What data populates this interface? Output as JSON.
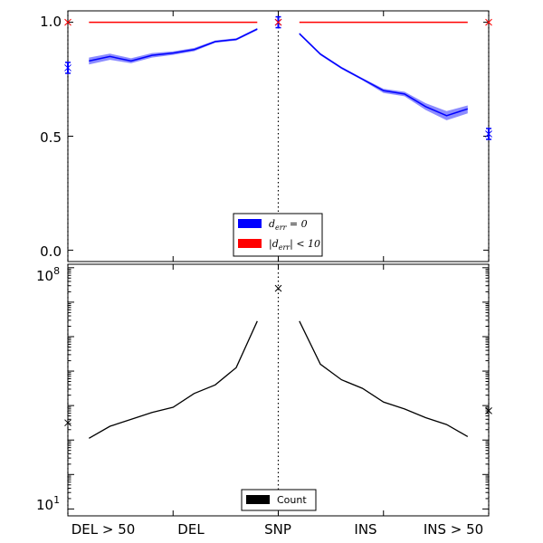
{
  "chart_data": [
    {
      "type": "line",
      "panel": "top",
      "x_categories": [
        "DEL > 50",
        "DEL",
        "SNP",
        "INS",
        "INS > 50"
      ],
      "yticks": [
        "0.0",
        "0.5",
        "1.0"
      ],
      "ylim": [
        -0.05,
        1.05
      ],
      "xlim": [
        -10,
        10
      ],
      "legend_position": "lower center",
      "series": [
        {
          "name": "$d_{err}=0$",
          "color": "#0000ff",
          "line_x": [
            -9,
            -8,
            -7,
            -6,
            -5,
            -4,
            -3,
            -2,
            -1
          ],
          "line_y": [
            0.83,
            0.85,
            0.83,
            0.855,
            0.865,
            0.88,
            0.915,
            0.925,
            0.97
          ],
          "band_low": [
            0.815,
            0.835,
            0.82,
            0.845,
            0.857,
            0.873,
            0.91,
            0.92,
            0.965
          ],
          "band_high": [
            0.845,
            0.862,
            0.842,
            0.865,
            0.872,
            0.887,
            0.92,
            0.93,
            0.975
          ],
          "line_x2": [
            1,
            2,
            3,
            4,
            5,
            6,
            7,
            8,
            9
          ],
          "line_y2": [
            0.95,
            0.86,
            0.8,
            0.75,
            0.7,
            0.685,
            0.63,
            0.59,
            0.62
          ],
          "band_low2": [
            0.945,
            0.855,
            0.795,
            0.745,
            0.69,
            0.675,
            0.615,
            0.57,
            0.6
          ],
          "band_high2": [
            0.955,
            0.865,
            0.805,
            0.755,
            0.708,
            0.695,
            0.645,
            0.61,
            0.635
          ],
          "points": [
            {
              "x": -10,
              "y": 0.8
            },
            {
              "x": 0,
              "y": 1.0
            },
            {
              "x": 10,
              "y": 0.51
            }
          ]
        },
        {
          "name": "$|d_{err}|<10$",
          "color": "#ff0000",
          "line_x": [
            -9,
            -1
          ],
          "line_y": [
            1.0,
            1.0
          ],
          "line_x2": [
            1,
            9
          ],
          "line_y2": [
            1.0,
            1.0
          ],
          "points": [
            {
              "x": -10,
              "y": 1.0
            },
            {
              "x": 0,
              "y": 1.0
            },
            {
              "x": 10,
              "y": 1.0
            }
          ]
        }
      ],
      "legend": [
        "$d_{err}=0$",
        "$|d_{err}|<10$"
      ]
    },
    {
      "type": "line",
      "panel": "bottom",
      "yscale": "log",
      "ylim_exp": [
        0.8,
        8.1
      ],
      "yticks": [
        "10^1",
        "10^8"
      ],
      "x_categories": [
        "DEL > 50",
        "DEL",
        "SNP",
        "INS",
        "INS > 50"
      ],
      "xlim": [
        -10,
        10
      ],
      "legend_position": "lower center",
      "series": [
        {
          "name": "Count",
          "color": "#000000",
          "line_x": [
            -9,
            -8,
            -7,
            -6,
            -5,
            -4,
            -3,
            -2,
            -1
          ],
          "line_log10_y": [
            3.05,
            3.4,
            3.6,
            3.8,
            3.95,
            4.35,
            4.6,
            5.1,
            6.45
          ],
          "line_x2": [
            1,
            2,
            3,
            4,
            5,
            6,
            7,
            8,
            9
          ],
          "line_log10_y2": [
            6.45,
            5.2,
            4.75,
            4.5,
            4.1,
            3.9,
            3.65,
            3.45,
            3.1
          ],
          "points": [
            {
              "x": -10,
              "log10_y": 3.5
            },
            {
              "x": 0,
              "log10_y": 7.4
            },
            {
              "x": 10,
              "log10_y": 3.85
            }
          ]
        }
      ],
      "legend": [
        "Count"
      ]
    }
  ],
  "tick_labels": {
    "x": [
      "DEL > 50",
      "DEL",
      "SNP",
      "INS",
      "INS > 50"
    ],
    "top_y": [
      "0.0",
      "0.5",
      "1.0"
    ],
    "bottom_y_base": "10",
    "bottom_y_exps": [
      "1",
      "8"
    ]
  },
  "legend_labels": {
    "top_1": "d_err = 0",
    "top_2": "|d_err| < 10",
    "bottom_1": "Count"
  }
}
